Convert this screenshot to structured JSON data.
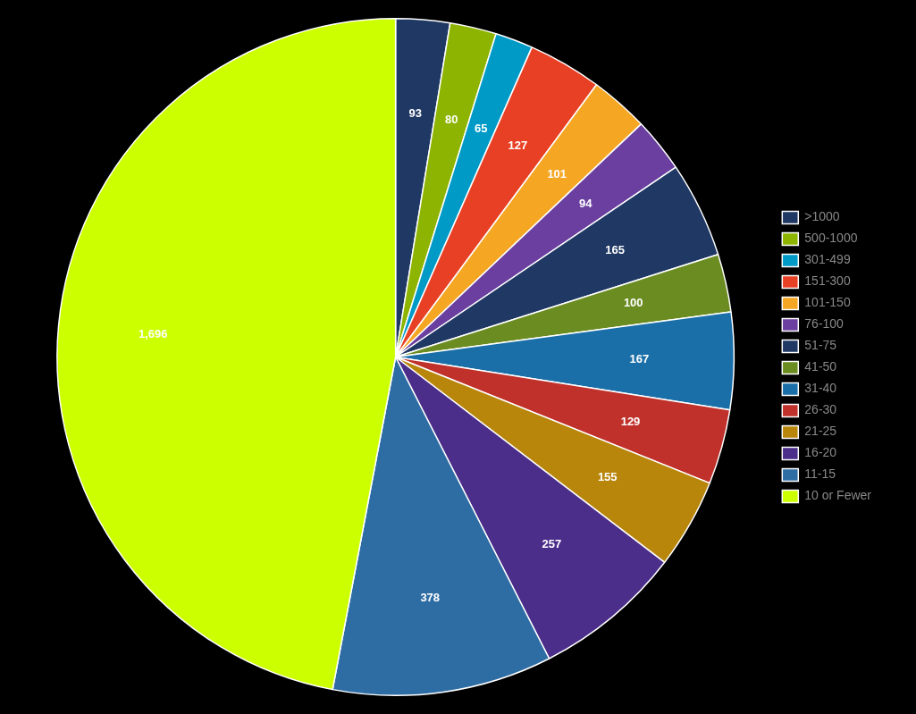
{
  "chart_data": {
    "type": "pie",
    "categories": [
      ">1000",
      "500-1000",
      "301-499",
      "151-300",
      "101-150",
      "76-100",
      "51-75",
      "41-50",
      "31-40",
      "26-30",
      "21-25",
      "16-20",
      "11-15",
      "10 or Fewer"
    ],
    "values": [
      93,
      80,
      65,
      127,
      101,
      94,
      165,
      100,
      167,
      129,
      155,
      257,
      378,
      1696
    ],
    "value_labels": [
      "93",
      "80",
      "65",
      "127",
      "101",
      "94",
      "165",
      "100",
      "167",
      "129",
      "155",
      "257",
      "378",
      "1,696"
    ],
    "colors": [
      "#1F3864",
      "#8DB400",
      "#009AC7",
      "#E84025",
      "#F5A623",
      "#6B3FA0",
      "#1F3864",
      "#6B8C21",
      "#1A6FA8",
      "#C0312B",
      "#B8860B",
      "#4B2D8A",
      "#2E6DA4",
      "#CCFF00"
    ],
    "data_labels": true,
    "legend": "right"
  }
}
